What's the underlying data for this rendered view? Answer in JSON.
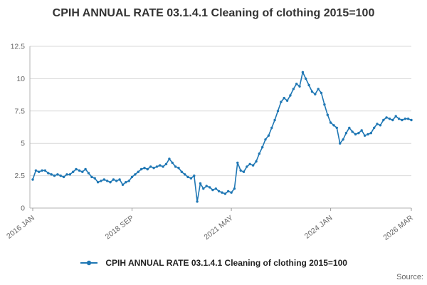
{
  "header": {
    "title": "CPIH ANNUAL RATE 03.1.4.1 Cleaning of clothing 2015=100"
  },
  "legend": {
    "label": "CPIH ANNUAL RATE 03.1.4.1 Cleaning of clothing 2015=100"
  },
  "footer": {
    "source_label": "Source:"
  },
  "colors": {
    "line": "#1f77b4",
    "grid": "#d9d9d9",
    "axis": "#b3b3b3",
    "tick_text": "#666666",
    "title_text": "#333333"
  },
  "chart_data": {
    "type": "line",
    "title": "CPIH ANNUAL RATE 03.1.4.1 Cleaning of clothing 2015=100",
    "series_name": "CPIH ANNUAL RATE 03.1.4.1 Cleaning of clothing 2015=100",
    "frequency": "monthly",
    "x_start": "2016 JAN",
    "x_end": "2026 MAR",
    "x_tick_labels": [
      "2016 JAN",
      "2018 SEP",
      "2021 MAY",
      "2024 JAN",
      "2026 MAR"
    ],
    "x_tick_month_index": [
      0,
      32,
      64,
      96,
      122
    ],
    "y_ticks": [
      0,
      2.5,
      5,
      7.5,
      10,
      12.5
    ],
    "ylim": [
      0,
      12.5
    ],
    "grid": true,
    "legend_position": "bottom",
    "line_color": "#1f77b4",
    "values": [
      2.2,
      2.9,
      2.8,
      2.9,
      2.9,
      2.7,
      2.6,
      2.5,
      2.6,
      2.5,
      2.4,
      2.6,
      2.6,
      2.8,
      3.0,
      2.9,
      2.8,
      3.0,
      2.7,
      2.4,
      2.3,
      2.0,
      2.1,
      2.2,
      2.1,
      2.0,
      2.2,
      2.1,
      2.2,
      1.8,
      2.0,
      2.1,
      2.4,
      2.6,
      2.8,
      3.0,
      3.1,
      3.0,
      3.2,
      3.1,
      3.2,
      3.3,
      3.2,
      3.4,
      3.8,
      3.5,
      3.2,
      3.1,
      2.8,
      2.6,
      2.4,
      2.3,
      2.5,
      0.5,
      1.9,
      1.5,
      1.7,
      1.6,
      1.4,
      1.5,
      1.3,
      1.2,
      1.1,
      1.3,
      1.2,
      1.5,
      3.5,
      2.9,
      2.8,
      3.2,
      3.4,
      3.3,
      3.6,
      4.2,
      4.7,
      5.3,
      5.6,
      6.2,
      6.8,
      7.5,
      8.2,
      8.5,
      8.3,
      8.7,
      9.2,
      9.6,
      9.4,
      10.5,
      10.0,
      9.5,
      9.0,
      8.8,
      9.2,
      8.9,
      8.0,
      7.2,
      6.6,
      6.4,
      6.2,
      5.0,
      5.3,
      5.8,
      6.2,
      5.9,
      5.7,
      5.8,
      6.0,
      5.6,
      5.7,
      5.8,
      6.2,
      6.5,
      6.4,
      6.8,
      7.0,
      6.9,
      6.8,
      7.1,
      6.9,
      6.8,
      6.9,
      6.9,
      6.8
    ]
  }
}
